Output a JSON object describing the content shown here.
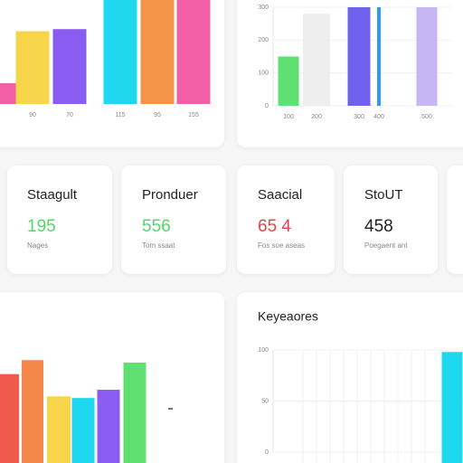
{
  "charts": [
    {
      "type": "bar",
      "categories": [
        null,
        "90",
        "70",
        "115",
        "95",
        "155"
      ],
      "colors": [
        "#f25fa6",
        "#f7d54a",
        "#8b5cf0",
        "#1ed8f0",
        "#f4934a",
        "#f25fa6"
      ],
      "values": [
        20,
        70,
        72,
        100,
        100,
        100
      ],
      "ylim": [
        0,
        100
      ]
    },
    {
      "type": "bar",
      "categories": [
        "100",
        "200",
        "300",
        "400",
        "500"
      ],
      "colors": [
        "#5fe070",
        "#eeeeee",
        "#6f62ec",
        "#2a9cf2",
        "#c7b6f2"
      ],
      "values": [
        150,
        280,
        300,
        300,
        300
      ],
      "ylim": [
        0,
        300
      ],
      "yticks": [
        0,
        100,
        200,
        300
      ],
      "grid": true
    },
    {
      "type": "bar",
      "categories": [
        null,
        null,
        null,
        null,
        null,
        null
      ],
      "colors": [
        "#f15a4a",
        "#f4874a",
        "#f7d54a",
        "#1ed8f0",
        "#8b5cf0",
        "#5fe070"
      ],
      "values": [
        108,
        125,
        81,
        79,
        89,
        122
      ],
      "ylim": [
        0,
        200
      ]
    },
    {
      "type": "bar",
      "title": "Keyeaores",
      "categories": [
        null
      ],
      "colors": [
        "#1ed8f0"
      ],
      "values": [
        98
      ],
      "ylim": [
        0,
        100
      ],
      "yticks": [
        0,
        50,
        100
      ],
      "grid": true
    }
  ],
  "cards": [
    {
      "title": "Staagult",
      "value": "195",
      "subtitle": "Nages",
      "color": "#4fd866"
    },
    {
      "title": "Pronduer",
      "value": "556",
      "subtitle": "Tom ssaat",
      "color": "#4fd866"
    },
    {
      "title": "Saacial",
      "value": "65 4",
      "subtitle": "Fos soe aseas",
      "color": "#e2454a"
    },
    {
      "title": "StoUT",
      "value": "458",
      "subtitle": "Poegaent ant",
      "color": "#222222"
    }
  ]
}
